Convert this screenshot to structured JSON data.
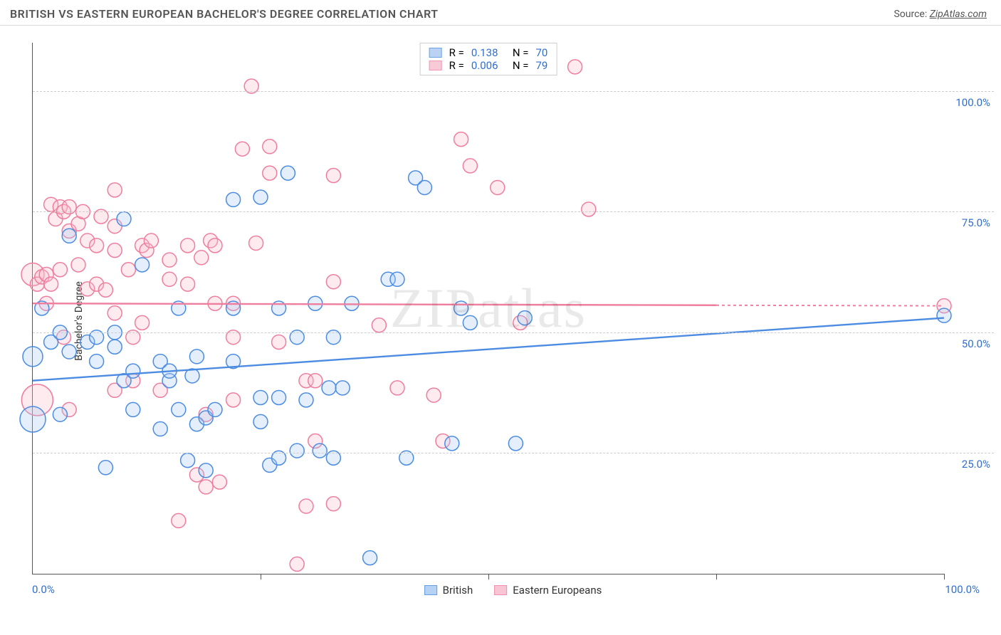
{
  "title": "BRITISH VS EASTERN EUROPEAN BACHELOR'S DEGREE CORRELATION CHART",
  "source_prefix": "Source: ",
  "source_name": "ZipAtlas.com",
  "ylabel": "Bachelor's Degree",
  "watermark": "ZIPatlas",
  "chart": {
    "type": "scatter",
    "xlim": [
      0,
      100
    ],
    "ylim": [
      0,
      110
    ],
    "y_gridlines": [
      25,
      50,
      75,
      100
    ],
    "y_labels": [
      "25.0%",
      "50.0%",
      "75.0%",
      "100.0%"
    ],
    "x_ticks": [
      25,
      50,
      75,
      100
    ],
    "x_axis_labels": {
      "left": "0.0%",
      "right": "100.0%"
    },
    "grid_color": "#cccccc",
    "axis_color": "#555555",
    "label_color": "#2f6fd0",
    "marker_radius": 10,
    "marker_stroke_width": 1.5,
    "marker_fill_opacity": 0.3,
    "trend_line_width": 2.4,
    "trend_dash_extend": "4,4",
    "series": [
      {
        "name": "British",
        "legend_label": "British",
        "stroke": "#4b8ce2",
        "fill": "#a9c9f2",
        "R_label": "R =",
        "R_value": "0.138",
        "N_label": "N =",
        "N_value": "70",
        "trend": {
          "x1": 0,
          "y1": 40,
          "x2": 100,
          "y2": 53,
          "solid_until_x": 100
        },
        "points": [
          [
            0,
            32,
            18
          ],
          [
            0,
            45,
            14
          ],
          [
            1,
            55
          ],
          [
            2,
            48
          ],
          [
            3,
            50
          ],
          [
            3,
            33
          ],
          [
            4,
            46
          ],
          [
            4,
            70
          ],
          [
            6,
            48
          ],
          [
            7,
            44
          ],
          [
            7,
            49
          ],
          [
            8,
            22
          ],
          [
            9,
            50
          ],
          [
            9,
            47
          ],
          [
            10,
            40
          ],
          [
            10,
            73.5
          ],
          [
            11,
            42
          ],
          [
            11,
            34
          ],
          [
            12,
            64
          ],
          [
            14,
            44
          ],
          [
            14,
            30
          ],
          [
            15,
            40
          ],
          [
            15,
            42
          ],
          [
            16,
            55
          ],
          [
            16,
            34
          ],
          [
            17,
            23.5
          ],
          [
            17.5,
            41
          ],
          [
            18,
            45
          ],
          [
            18,
            31
          ],
          [
            19,
            32.3
          ],
          [
            19,
            21.4
          ],
          [
            20,
            34
          ],
          [
            22,
            77.5
          ],
          [
            22,
            44
          ],
          [
            22,
            55
          ],
          [
            25,
            78
          ],
          [
            25,
            36.5
          ],
          [
            25,
            31.5
          ],
          [
            26,
            22.5
          ],
          [
            27,
            24
          ],
          [
            27,
            36.5
          ],
          [
            27,
            55
          ],
          [
            28,
            83
          ],
          [
            29,
            49
          ],
          [
            29,
            25.5
          ],
          [
            30,
            36
          ],
          [
            31,
            56
          ],
          [
            31.5,
            25.5
          ],
          [
            32.5,
            38.5
          ],
          [
            33,
            24
          ],
          [
            33,
            49
          ],
          [
            34,
            38.5
          ],
          [
            35,
            56
          ],
          [
            37,
            3.3
          ],
          [
            39,
            61
          ],
          [
            40,
            61
          ],
          [
            41,
            24
          ],
          [
            42,
            82
          ],
          [
            43,
            80
          ],
          [
            46,
            27
          ],
          [
            47,
            55
          ],
          [
            48,
            52
          ],
          [
            53,
            27
          ],
          [
            54,
            53
          ],
          [
            100,
            53.5
          ]
        ]
      },
      {
        "name": "Eastern Europeans",
        "legend_label": "Eastern Europeans",
        "stroke": "#ef7d9e",
        "fill": "#f7bccd",
        "R_label": "R =",
        "R_value": "0.006",
        "N_label": "N =",
        "N_value": "79",
        "trend": {
          "x1": 0,
          "y1": 56,
          "x2": 100,
          "y2": 55.5,
          "solid_until_x": 75
        },
        "points": [
          [
            0,
            62,
            16
          ],
          [
            0.5,
            36,
            22
          ],
          [
            0.5,
            60
          ],
          [
            1,
            61.5
          ],
          [
            1.5,
            62
          ],
          [
            1.5,
            56
          ],
          [
            2,
            60
          ],
          [
            2,
            76.5
          ],
          [
            2.5,
            73.5
          ],
          [
            3,
            63
          ],
          [
            3,
            76
          ],
          [
            3.4,
            75
          ],
          [
            3.4,
            49
          ],
          [
            4,
            76
          ],
          [
            4,
            71
          ],
          [
            4,
            34
          ],
          [
            5,
            72.5
          ],
          [
            5,
            64
          ],
          [
            5.5,
            75
          ],
          [
            6,
            69
          ],
          [
            6,
            59
          ],
          [
            7,
            68
          ],
          [
            7,
            60
          ],
          [
            7.5,
            74
          ],
          [
            8,
            58.8
          ],
          [
            9,
            79.5
          ],
          [
            9,
            67
          ],
          [
            9,
            54
          ],
          [
            9,
            72
          ],
          [
            9,
            38
          ],
          [
            10.5,
            63
          ],
          [
            11,
            40
          ],
          [
            11,
            49
          ],
          [
            12,
            68
          ],
          [
            12.5,
            67
          ],
          [
            12,
            52
          ],
          [
            13,
            69
          ],
          [
            14,
            38
          ],
          [
            15,
            65
          ],
          [
            15,
            61
          ],
          [
            16,
            11
          ],
          [
            17,
            68
          ],
          [
            17,
            60
          ],
          [
            18.5,
            65.5
          ],
          [
            18,
            20.5
          ],
          [
            19,
            33
          ],
          [
            19,
            18
          ],
          [
            19.5,
            69
          ],
          [
            20,
            56
          ],
          [
            20,
            68
          ],
          [
            20.5,
            19
          ],
          [
            22,
            56
          ],
          [
            22,
            49
          ],
          [
            22,
            36
          ],
          [
            23,
            88
          ],
          [
            24.5,
            68.5
          ],
          [
            24,
            101
          ],
          [
            26,
            83
          ],
          [
            26,
            88.5
          ],
          [
            27,
            48
          ],
          [
            29,
            2
          ],
          [
            30,
            40
          ],
          [
            30,
            14
          ],
          [
            31,
            27.5
          ],
          [
            31,
            40
          ],
          [
            33,
            60.5
          ],
          [
            33,
            14.5
          ],
          [
            33,
            82.5
          ],
          [
            38,
            51.5
          ],
          [
            40,
            38.5
          ],
          [
            44,
            37
          ],
          [
            45,
            27.5
          ],
          [
            47,
            90
          ],
          [
            48,
            84.5
          ],
          [
            51,
            80
          ],
          [
            53.5,
            52
          ],
          [
            59.5,
            105
          ],
          [
            61,
            75.5
          ],
          [
            100,
            55.5
          ]
        ]
      }
    ]
  },
  "legend": {
    "items": [
      {
        "label": "British",
        "stroke": "#4b8ce2",
        "fill": "#a9c9f2"
      },
      {
        "label": "Eastern Europeans",
        "stroke": "#ef7d9e",
        "fill": "#f7bccd"
      }
    ]
  }
}
